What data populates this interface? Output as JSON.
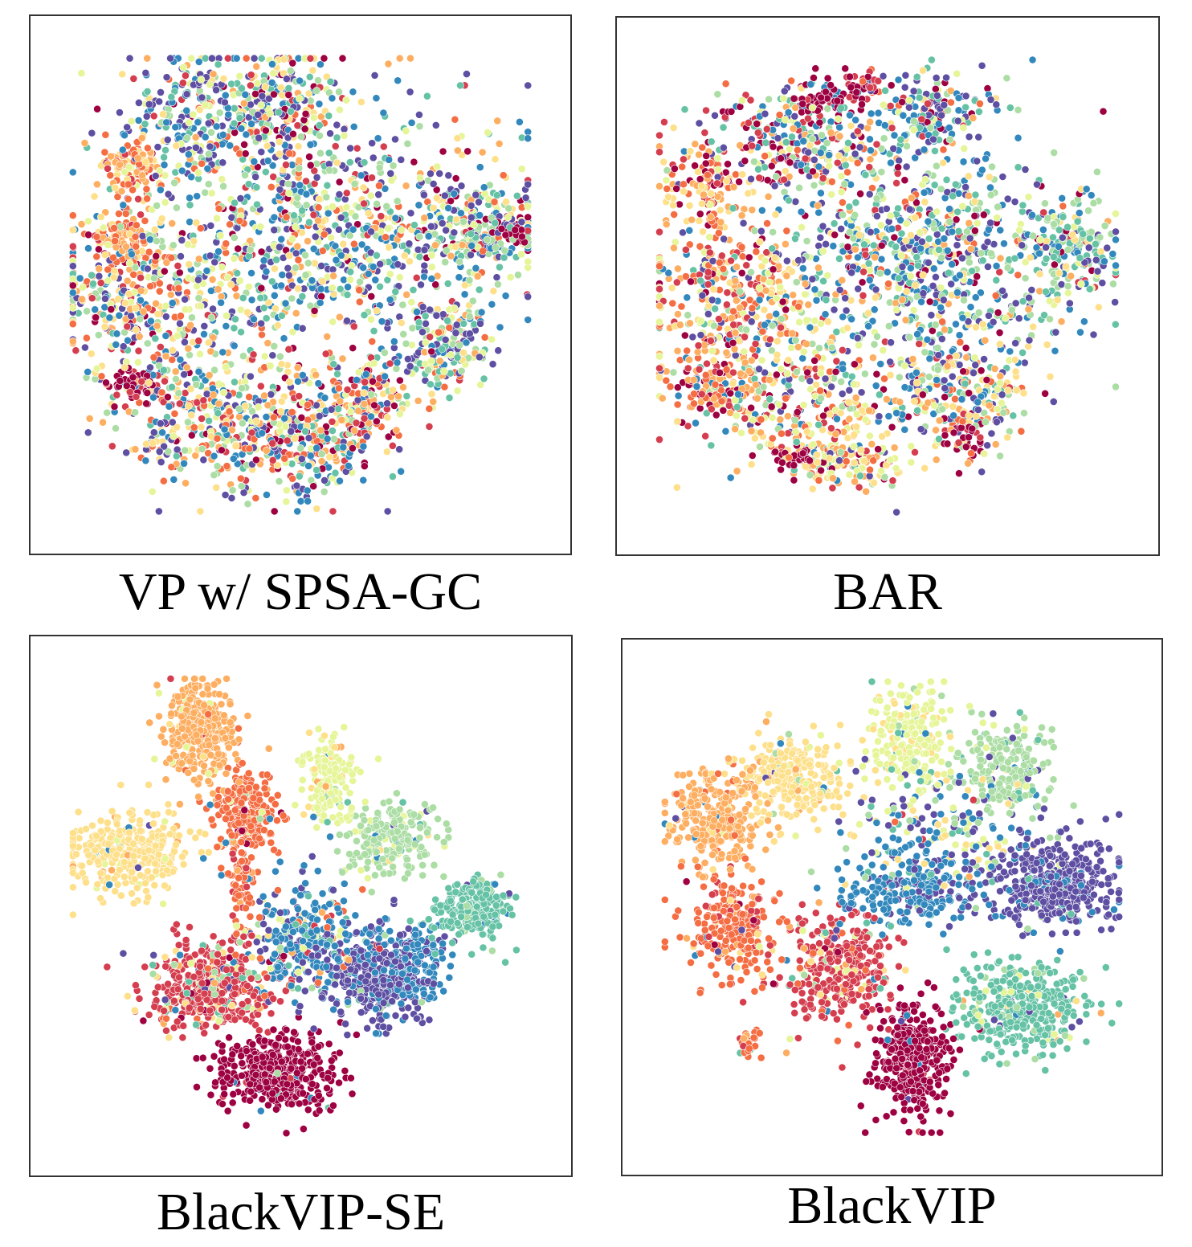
{
  "figure": {
    "colors": [
      "#9e0142",
      "#d53e4f",
      "#f46d43",
      "#fdae61",
      "#fee08b",
      "#e6f598",
      "#abdda4",
      "#66c2a5",
      "#3288bd",
      "#5e4fa2"
    ]
  },
  "chart_data": [
    {
      "type": "scatter",
      "title": "VP w/ SPSA-GC",
      "xlabel": "",
      "ylabel": "",
      "xlim": [
        0,
        100
      ],
      "ylim": [
        0,
        100
      ],
      "grid": false,
      "legend": "none",
      "clusters": [
        {
          "c": [
            28,
            86
          ],
          "s": [
            8,
            7
          ],
          "n": 260,
          "mix": [
            0.05,
            0.04,
            0.05,
            0.06,
            0.08,
            0.1,
            0.12,
            0.12,
            0.18,
            0.2
          ]
        },
        {
          "c": [
            46,
            90
          ],
          "s": [
            6,
            6
          ],
          "n": 220,
          "mix": [
            0.16,
            0.06,
            0.04,
            0.04,
            0.1,
            0.1,
            0.1,
            0.1,
            0.12,
            0.18
          ]
        },
        {
          "c": [
            14,
            76
          ],
          "s": [
            3.5,
            3
          ],
          "n": 110,
          "mix": [
            0.02,
            0.05,
            0.28,
            0.35,
            0.22,
            0.08,
            0,
            0,
            0,
            0
          ]
        },
        {
          "c": [
            12,
            60
          ],
          "s": [
            3,
            3
          ],
          "n": 90,
          "mix": [
            0,
            0.04,
            0.4,
            0.46,
            0.1,
            0,
            0,
            0,
            0,
            0
          ]
        },
        {
          "c": [
            58,
            62
          ],
          "s": [
            20,
            13
          ],
          "n": 900,
          "mix": [
            0.04,
            0.04,
            0.05,
            0.05,
            0.08,
            0.1,
            0.12,
            0.14,
            0.2,
            0.18
          ]
        },
        {
          "c": [
            89,
            62
          ],
          "s": [
            6,
            5
          ],
          "n": 170,
          "mix": [
            0.08,
            0.02,
            0.02,
            0.04,
            0.06,
            0.1,
            0.18,
            0.18,
            0.16,
            0.16
          ]
        },
        {
          "c": [
            96,
            62
          ],
          "s": [
            1.5,
            1.5
          ],
          "n": 40,
          "mix": [
            0.9,
            0,
            0,
            0,
            0,
            0,
            0,
            0,
            0,
            0.1
          ]
        },
        {
          "c": [
            17,
            48
          ],
          "s": [
            11,
            9
          ],
          "n": 420,
          "mix": [
            0.08,
            0.08,
            0.12,
            0.12,
            0.1,
            0.1,
            0.08,
            0.08,
            0.12,
            0.12
          ]
        },
        {
          "c": [
            28,
            23
          ],
          "s": [
            10,
            8
          ],
          "n": 330,
          "mix": [
            0.06,
            0.08,
            0.1,
            0.12,
            0.12,
            0.1,
            0.1,
            0.08,
            0.12,
            0.12
          ]
        },
        {
          "c": [
            49,
            17
          ],
          "s": [
            9,
            7
          ],
          "n": 330,
          "mix": [
            0.08,
            0.08,
            0.08,
            0.08,
            0.1,
            0.1,
            0.1,
            0.1,
            0.14,
            0.14
          ]
        },
        {
          "c": [
            81,
            36
          ],
          "s": [
            5,
            5
          ],
          "n": 170,
          "mix": [
            0.02,
            0.02,
            0.04,
            0.04,
            0.08,
            0.1,
            0.12,
            0.14,
            0.18,
            0.26
          ]
        },
        {
          "c": [
            64,
            25
          ],
          "s": [
            6,
            5
          ],
          "n": 160,
          "mix": [
            0.1,
            0.08,
            0.12,
            0.14,
            0.12,
            0.1,
            0.08,
            0.06,
            0.1,
            0.1
          ]
        },
        {
          "c": [
            14,
            28
          ],
          "s": [
            2.5,
            2
          ],
          "n": 55,
          "mix": [
            0.85,
            0.15,
            0,
            0,
            0,
            0,
            0,
            0,
            0,
            0
          ]
        }
      ]
    },
    {
      "type": "scatter",
      "title": "BAR",
      "xlabel": "",
      "ylabel": "",
      "xlim": [
        0,
        100
      ],
      "ylim": [
        0,
        100
      ],
      "grid": false,
      "legend": "none",
      "clusters": [
        {
          "c": [
            32,
            82
          ],
          "s": [
            11,
            6
          ],
          "n": 280,
          "mix": [
            0.14,
            0.08,
            0.05,
            0.05,
            0.06,
            0.08,
            0.1,
            0.12,
            0.16,
            0.16
          ]
        },
        {
          "c": [
            36,
            91
          ],
          "s": [
            3,
            2.5
          ],
          "n": 60,
          "mix": [
            0.85,
            0.1,
            0,
            0,
            0,
            0,
            0,
            0,
            0.05,
            0
          ]
        },
        {
          "c": [
            45,
            93
          ],
          "s": [
            2,
            2
          ],
          "n": 40,
          "mix": [
            0.4,
            0.4,
            0.1,
            0,
            0,
            0,
            0,
            0,
            0.05,
            0.05
          ]
        },
        {
          "c": [
            60,
            88
          ],
          "s": [
            6,
            4
          ],
          "n": 140,
          "mix": [
            0.12,
            0.04,
            0.02,
            0.02,
            0.04,
            0.08,
            0.14,
            0.14,
            0.2,
            0.2
          ]
        },
        {
          "c": [
            11,
            71
          ],
          "s": [
            5,
            5
          ],
          "n": 130,
          "mix": [
            0.2,
            0.1,
            0.2,
            0.25,
            0.2,
            0.05,
            0,
            0,
            0,
            0
          ]
        },
        {
          "c": [
            58,
            54
          ],
          "s": [
            18,
            13
          ],
          "n": 900,
          "mix": [
            0.03,
            0.03,
            0.03,
            0.04,
            0.06,
            0.1,
            0.14,
            0.16,
            0.21,
            0.2
          ]
        },
        {
          "c": [
            89,
            58
          ],
          "s": [
            5,
            5
          ],
          "n": 160,
          "mix": [
            0.02,
            0.02,
            0.02,
            0.02,
            0.06,
            0.1,
            0.22,
            0.24,
            0.14,
            0.16
          ]
        },
        {
          "c": [
            17,
            45
          ],
          "s": [
            10,
            10
          ],
          "n": 380,
          "mix": [
            0.06,
            0.1,
            0.18,
            0.2,
            0.12,
            0.1,
            0.06,
            0.04,
            0.06,
            0.08
          ]
        },
        {
          "c": [
            30,
            25
          ],
          "s": [
            12,
            7
          ],
          "n": 280,
          "mix": [
            0.08,
            0.08,
            0.12,
            0.14,
            0.16,
            0.14,
            0.08,
            0.06,
            0.08,
            0.06
          ]
        },
        {
          "c": [
            42,
            12
          ],
          "s": [
            6,
            3.5
          ],
          "n": 160,
          "mix": [
            0.1,
            0.06,
            0.08,
            0.12,
            0.3,
            0.18,
            0.06,
            0.04,
            0.04,
            0.02
          ]
        },
        {
          "c": [
            65,
            26
          ],
          "s": [
            8,
            6
          ],
          "n": 220,
          "mix": [
            0.06,
            0.06,
            0.08,
            0.1,
            0.12,
            0.12,
            0.1,
            0.1,
            0.12,
            0.14
          ]
        },
        {
          "c": [
            12,
            28
          ],
          "s": [
            4,
            3
          ],
          "n": 80,
          "mix": [
            0.3,
            0.1,
            0.3,
            0.3,
            0,
            0,
            0,
            0,
            0,
            0
          ]
        },
        {
          "c": [
            30,
            13
          ],
          "s": [
            2,
            1.5
          ],
          "n": 35,
          "mix": [
            0.9,
            0.1,
            0,
            0,
            0,
            0,
            0,
            0,
            0,
            0
          ]
        },
        {
          "c": [
            67,
            18
          ],
          "s": [
            2,
            2
          ],
          "n": 40,
          "mix": [
            0.6,
            0.2,
            0.1,
            0.1,
            0,
            0,
            0,
            0,
            0,
            0
          ]
        }
      ]
    },
    {
      "type": "scatter",
      "title": "BlackVIP-SE",
      "xlabel": "",
      "ylabel": "",
      "xlim": [
        0,
        100
      ],
      "ylim": [
        0,
        100
      ],
      "grid": false,
      "legend": "none",
      "clusters": [
        {
          "c": [
            28,
            88
          ],
          "s": [
            4,
            5.5
          ],
          "n": 360,
          "mix": [
            0,
            0.01,
            0.02,
            0.92,
            0.03,
            0.02,
            0,
            0,
            0,
            0
          ]
        },
        {
          "c": [
            13,
            61
          ],
          "s": [
            6.5,
            4.5
          ],
          "n": 330,
          "mix": [
            0,
            0,
            0,
            0.04,
            0.9,
            0.03,
            0.01,
            0,
            0.01,
            0.01
          ]
        },
        {
          "c": [
            38,
            70
          ],
          "s": [
            3.5,
            5
          ],
          "n": 240,
          "mix": [
            0.02,
            0.02,
            0.86,
            0.04,
            0.02,
            0.02,
            0.02,
            0,
            0.02,
            0
          ]
        },
        {
          "c": [
            37,
            54
          ],
          "s": [
            1.5,
            6
          ],
          "n": 70,
          "mix": [
            0.02,
            0.1,
            0.84,
            0.02,
            0,
            0,
            0,
            0,
            0.02,
            0
          ]
        },
        {
          "c": [
            56,
            77
          ],
          "s": [
            3,
            5
          ],
          "n": 160,
          "mix": [
            0,
            0,
            0,
            0.02,
            0.08,
            0.82,
            0.02,
            0.02,
            0.04,
            0
          ]
        },
        {
          "c": [
            70,
            64
          ],
          "s": [
            5,
            4
          ],
          "n": 220,
          "mix": [
            0,
            0,
            0,
            0,
            0.02,
            0.08,
            0.84,
            0.02,
            0.02,
            0.02
          ]
        },
        {
          "c": [
            87,
            49
          ],
          "s": [
            4,
            3
          ],
          "n": 230,
          "mix": [
            0,
            0,
            0,
            0,
            0,
            0,
            0.04,
            0.92,
            0.02,
            0.02
          ]
        },
        {
          "c": [
            30,
            33
          ],
          "s": [
            7,
            5
          ],
          "n": 450,
          "mix": [
            0.03,
            0.7,
            0.05,
            0.03,
            0.05,
            0.04,
            0.04,
            0.02,
            0.02,
            0.02
          ]
        },
        {
          "c": [
            45,
            14
          ],
          "s": [
            6,
            4
          ],
          "n": 420,
          "mix": [
            0.93,
            0.02,
            0,
            0,
            0,
            0,
            0.02,
            0.01,
            0.01,
            0.01
          ]
        },
        {
          "c": [
            51,
            43
          ],
          "s": [
            7,
            6
          ],
          "n": 300,
          "mix": [
            0.01,
            0.02,
            0.02,
            0.02,
            0.02,
            0.04,
            0.05,
            0.06,
            0.55,
            0.21
          ]
        },
        {
          "c": [
            67,
            35
          ],
          "s": [
            6,
            5
          ],
          "n": 400,
          "mix": [
            0.01,
            0.01,
            0,
            0,
            0,
            0.01,
            0.02,
            0.02,
            0.2,
            0.73
          ]
        },
        {
          "c": [
            75,
            38
          ],
          "s": [
            3,
            4
          ],
          "n": 110,
          "mix": [
            0,
            0,
            0,
            0,
            0,
            0,
            0.02,
            0.03,
            0.85,
            0.1
          ]
        }
      ]
    },
    {
      "type": "scatter",
      "title": "BlackVIP",
      "xlabel": "",
      "ylabel": "",
      "xlim": [
        0,
        100
      ],
      "ylim": [
        0,
        100
      ],
      "grid": false,
      "legend": "none",
      "clusters": [
        {
          "c": [
            12,
            70
          ],
          "s": [
            5,
            5
          ],
          "n": 300,
          "mix": [
            0,
            0,
            0.05,
            0.88,
            0.04,
            0.01,
            0,
            0,
            0.01,
            0.01
          ]
        },
        {
          "c": [
            29,
            78
          ],
          "s": [
            6,
            5
          ],
          "n": 260,
          "mix": [
            0,
            0,
            0,
            0.06,
            0.86,
            0.04,
            0.02,
            0,
            0.01,
            0.01
          ]
        },
        {
          "c": [
            54,
            87
          ],
          "s": [
            4,
            6
          ],
          "n": 230,
          "mix": [
            0,
            0,
            0,
            0.02,
            0.1,
            0.8,
            0.04,
            0.02,
            0.02,
            0
          ]
        },
        {
          "c": [
            74,
            80
          ],
          "s": [
            5,
            5
          ],
          "n": 200,
          "mix": [
            0,
            0,
            0,
            0,
            0.02,
            0.06,
            0.78,
            0.06,
            0.04,
            0.04
          ]
        },
        {
          "c": [
            61,
            68
          ],
          "s": [
            11,
            7
          ],
          "n": 180,
          "mix": [
            0.02,
            0.02,
            0.02,
            0.02,
            0.1,
            0.16,
            0.14,
            0.08,
            0.24,
            0.2
          ]
        },
        {
          "c": [
            16,
            45
          ],
          "s": [
            5,
            6
          ],
          "n": 260,
          "mix": [
            0.02,
            0.1,
            0.8,
            0.04,
            0.02,
            0,
            0,
            0,
            0.01,
            0.01
          ]
        },
        {
          "c": [
            38,
            37
          ],
          "s": [
            6,
            6
          ],
          "n": 330,
          "mix": [
            0.03,
            0.7,
            0.05,
            0.04,
            0.04,
            0.04,
            0.03,
            0.03,
            0.02,
            0.02
          ]
        },
        {
          "c": [
            55,
            54
          ],
          "s": [
            9,
            4
          ],
          "n": 260,
          "mix": [
            0,
            0,
            0,
            0,
            0,
            0.02,
            0.04,
            0.04,
            0.7,
            0.2
          ]
        },
        {
          "c": [
            85,
            55
          ],
          "s": [
            7,
            5
          ],
          "n": 420,
          "mix": [
            0,
            0,
            0,
            0,
            0,
            0,
            0.02,
            0.02,
            0.12,
            0.84
          ]
        },
        {
          "c": [
            78,
            28
          ],
          "s": [
            7,
            5
          ],
          "n": 380,
          "mix": [
            0,
            0,
            0,
            0.01,
            0.01,
            0.03,
            0.06,
            0.86,
            0.01,
            0.02
          ]
        },
        {
          "c": [
            54,
            17
          ],
          "s": [
            4,
            6
          ],
          "n": 360,
          "mix": [
            0.94,
            0.02,
            0,
            0,
            0,
            0,
            0,
            0,
            0.02,
            0.02
          ]
        },
        {
          "c": [
            19,
            20
          ],
          "s": [
            2,
            2
          ],
          "n": 30,
          "mix": [
            0,
            0.2,
            0.5,
            0.1,
            0,
            0,
            0,
            0.2,
            0,
            0
          ]
        }
      ]
    }
  ]
}
